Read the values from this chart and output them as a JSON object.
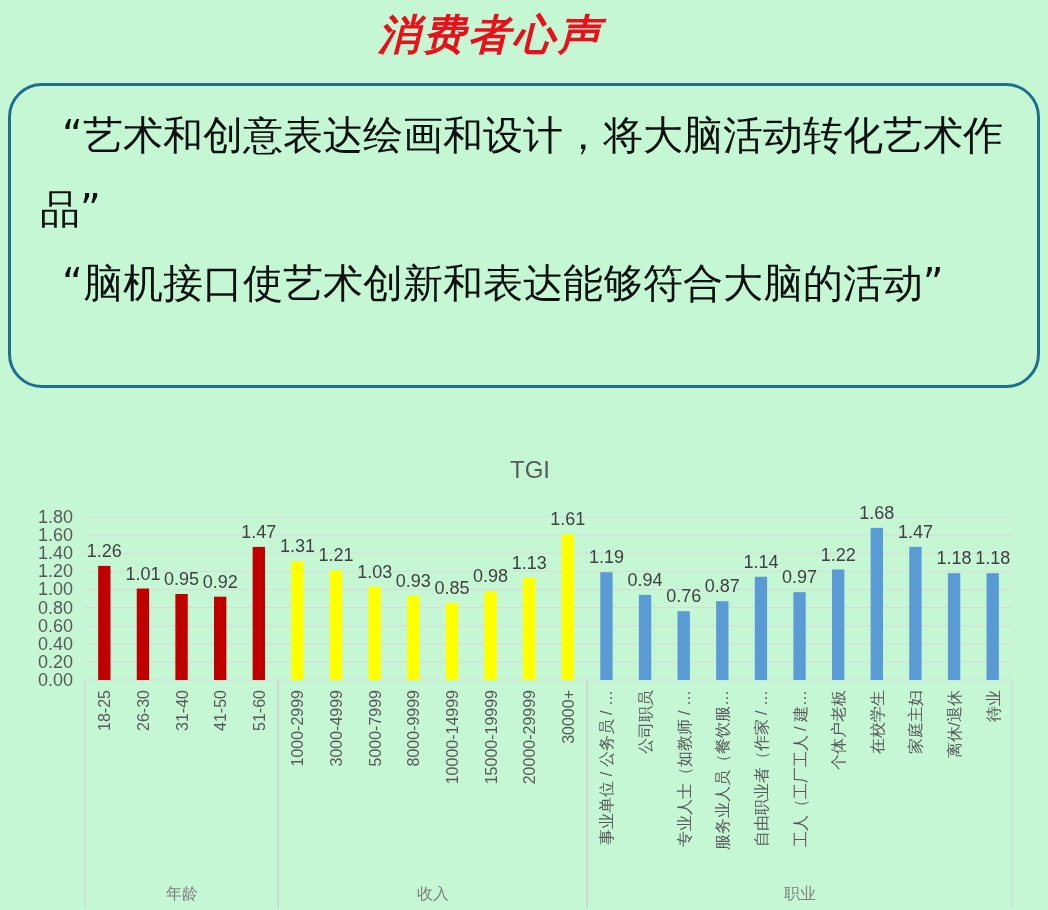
{
  "chart_data": [
    {
      "type": "other",
      "title": "消费者心声",
      "annotations": [
        "“艺术和创意表达绘画和设计，将大脑活动转化艺术作品”",
        "“脑机接口使艺术创新和表达能够符合大脑的活动”"
      ]
    },
    {
      "type": "bar",
      "xlabel": "年龄",
      "categories": [
        "18-25",
        "26-30",
        "31-40",
        "41-50",
        "51-60"
      ],
      "values": [
        1.26,
        1.01,
        0.95,
        0.92,
        1.47
      ],
      "color": "#c00000",
      "ylim": [
        0,
        1.8
      ],
      "yticks": [
        {
          "value": 0,
          "label": "0.00"
        },
        {
          "value": 0.2,
          "label": "0.20"
        },
        {
          "value": 0.4,
          "label": "0.40"
        },
        {
          "value": 0.6,
          "label": "0.60"
        },
        {
          "value": 0.8,
          "label": "0.80"
        },
        {
          "value": 1,
          "label": "1.00"
        },
        {
          "value": 1.2,
          "label": "1.20"
        },
        {
          "value": 1.4,
          "label": "1.40"
        },
        {
          "value": 1.6,
          "label": "1.60"
        },
        {
          "value": 1.8,
          "label": "1.80"
        }
      ],
      "grid": "y",
      "data_labels": true
    },
    {
      "type": "bar",
      "title": "TGI",
      "xlabel": "收入",
      "categories": [
        "1000-2999",
        "3000-4999",
        "5000-7999",
        "8000-9999",
        "10000-14999",
        "15000-19999",
        "20000-29999",
        "30000+"
      ],
      "values": [
        1.31,
        1.21,
        1.03,
        0.93,
        0.85,
        0.98,
        1.13,
        1.61
      ],
      "color": "#ffff00",
      "ylim": [
        0,
        1.8
      ],
      "yticks": [
        0,
        0.2,
        0.4,
        0.6,
        0.8,
        1,
        1.2,
        1.4,
        1.6,
        1.8
      ],
      "grid": "y",
      "data_labels": true,
      "tick_labels": "x"
    },
    {
      "type": "bar",
      "xlabel": "职业",
      "categories": [
        "事业单位 / 公务员 / …",
        "公司职员",
        "专业人士（如教师 / …",
        "服务业人员（餐饮服…",
        "自由职业者（作家 / …",
        "工人（工厂工人 / 建…",
        "个体户老板",
        "在校学生",
        "家庭主妇",
        "离休/退休",
        "待业"
      ],
      "values": [
        1.19,
        0.94,
        0.76,
        0.87,
        1.14,
        0.97,
        1.22,
        1.68,
        1.47,
        1.18,
        1.18
      ],
      "color": "#5b9bd5",
      "ylim": [
        0,
        1.8
      ],
      "yticks": [
        0,
        0.2,
        0.4,
        0.6,
        0.8,
        1,
        1.2,
        1.4,
        1.6,
        1.8
      ],
      "grid": "y",
      "data_labels": true,
      "tick_labels": "x"
    }
  ]
}
